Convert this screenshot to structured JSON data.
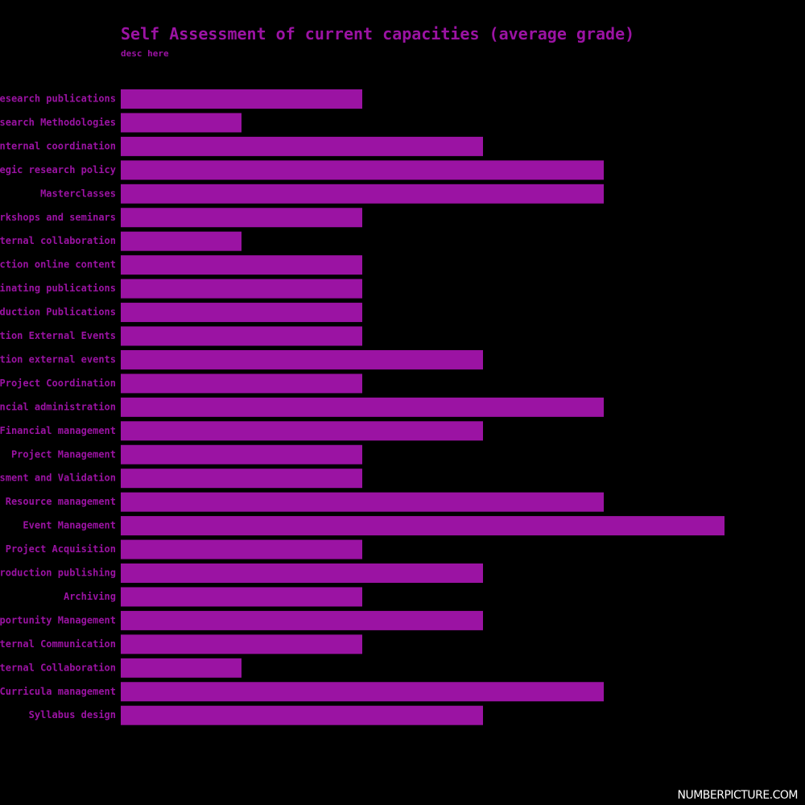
{
  "chart_data": {
    "type": "bar",
    "orientation": "horizontal",
    "title": "Self Assessment of current capacities (average grade)",
    "subtitle": "desc here",
    "xlabel": "",
    "ylabel": "",
    "xlim": [
      0,
      5
    ],
    "grid": false,
    "legend": "none",
    "bar_color": "#9b13a3",
    "label_color": "#9b13a3",
    "background": "#000000",
    "categories": [
      "Research publications",
      "Research Methodologies",
      "Internal coordination",
      "Strategic research policy",
      "Masterclasses",
      "Workshops and seminars",
      "External collaboration",
      "Production online content",
      "Coordinating publications",
      "Production Publications",
      "Participation External Events",
      "Production external events",
      "Project Coordination",
      "Financial administration",
      "Financial management",
      "Project Management",
      "Assessment and Validation",
      "Human Resource management",
      "Event Management",
      "Project Acquisition",
      "Production publishing",
      "Archiving",
      "Opportunity Management",
      "External Communication",
      "Internal Collaboration",
      "Curricula management",
      "Syllabus design"
    ],
    "values": [
      2,
      1,
      3,
      4,
      4,
      2,
      1,
      2,
      2,
      2,
      2,
      3,
      2,
      4,
      3,
      2,
      2,
      4,
      5,
      2,
      3,
      2,
      3,
      2,
      1,
      4,
      3
    ]
  },
  "watermark": "NUMBERPICTURE.COM"
}
